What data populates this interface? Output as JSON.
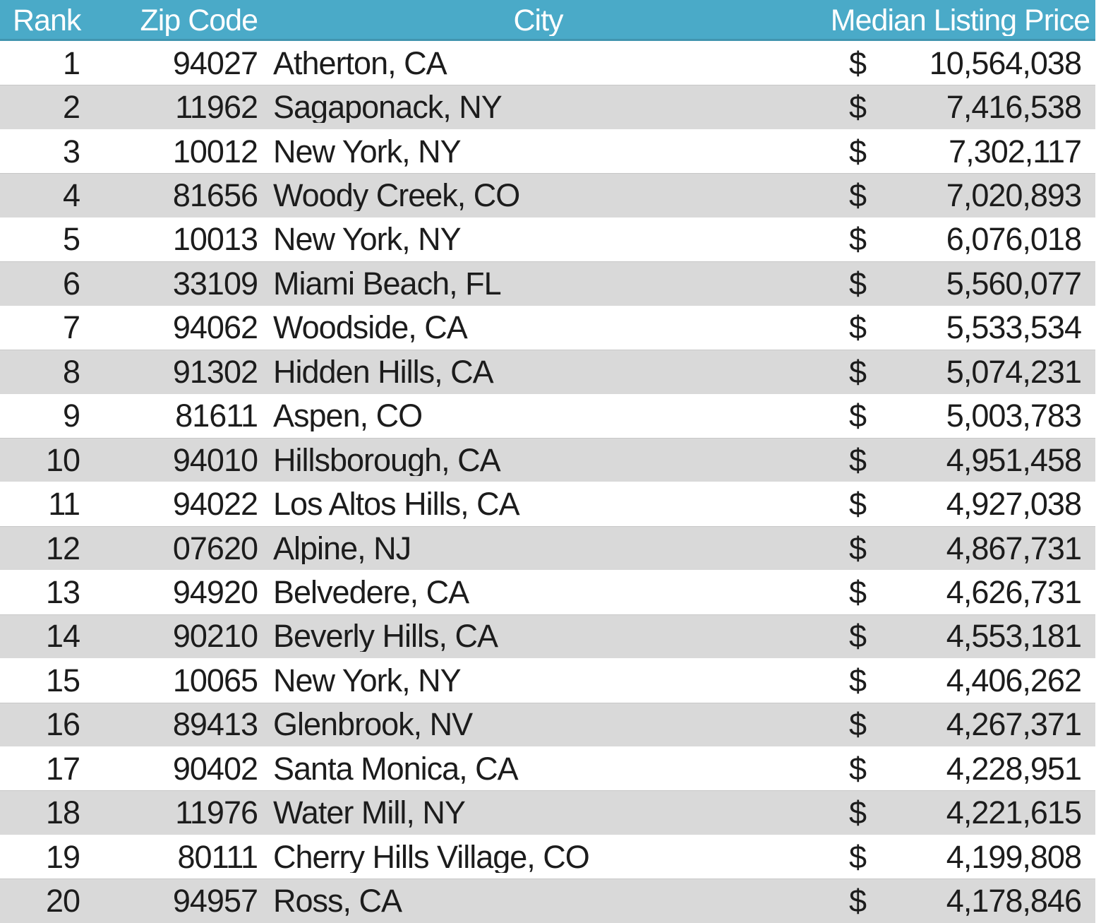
{
  "chart_data": {
    "type": "table",
    "columns": [
      "Rank",
      "Zip Code",
      "City",
      "Median Listing Price"
    ],
    "currency": "$",
    "rows": [
      {
        "rank": "1",
        "zip": "94027",
        "city": "Atherton, CA",
        "price": "10,564,038"
      },
      {
        "rank": "2",
        "zip": "11962",
        "city": "Sagaponack, NY",
        "price": "7,416,538"
      },
      {
        "rank": "3",
        "zip": "10012",
        "city": "New York, NY",
        "price": "7,302,117"
      },
      {
        "rank": "4",
        "zip": "81656",
        "city": "Woody Creek, CO",
        "price": "7,020,893"
      },
      {
        "rank": "5",
        "zip": "10013",
        "city": "New York, NY",
        "price": "6,076,018"
      },
      {
        "rank": "6",
        "zip": "33109",
        "city": "Miami Beach, FL",
        "price": "5,560,077"
      },
      {
        "rank": "7",
        "zip": "94062",
        "city": "Woodside, CA",
        "price": "5,533,534"
      },
      {
        "rank": "8",
        "zip": "91302",
        "city": "Hidden Hills, CA",
        "price": "5,074,231"
      },
      {
        "rank": "9",
        "zip": "81611",
        "city": "Aspen, CO",
        "price": "5,003,783"
      },
      {
        "rank": "10",
        "zip": "94010",
        "city": "Hillsborough, CA",
        "price": "4,951,458"
      },
      {
        "rank": "11",
        "zip": "94022",
        "city": "Los Altos Hills, CA",
        "price": "4,927,038"
      },
      {
        "rank": "12",
        "zip": "07620",
        "city": "Alpine, NJ",
        "price": "4,867,731"
      },
      {
        "rank": "13",
        "zip": "94920",
        "city": "Belvedere, CA",
        "price": "4,626,731"
      },
      {
        "rank": "14",
        "zip": "90210",
        "city": "Beverly Hills, CA",
        "price": "4,553,181"
      },
      {
        "rank": "15",
        "zip": "10065",
        "city": "New York, NY",
        "price": "4,406,262"
      },
      {
        "rank": "16",
        "zip": "89413",
        "city": "Glenbrook, NV",
        "price": "4,267,371"
      },
      {
        "rank": "17",
        "zip": "90402",
        "city": "Santa Monica, CA",
        "price": "4,228,951"
      },
      {
        "rank": "18",
        "zip": "11976",
        "city": "Water Mill, NY",
        "price": "4,221,615"
      },
      {
        "rank": "19",
        "zip": "80111",
        "city": "Cherry Hills Village, CO",
        "price": "4,199,808"
      },
      {
        "rank": "20",
        "zip": "94957",
        "city": "Ross, CA",
        "price": "4,178,846"
      }
    ]
  },
  "colors": {
    "header_bg": "#4aaac8",
    "header_text": "#ffffff",
    "stripe_bg": "#d9d9d9",
    "row_bg": "#ffffff",
    "text": "#1c1c1c"
  }
}
